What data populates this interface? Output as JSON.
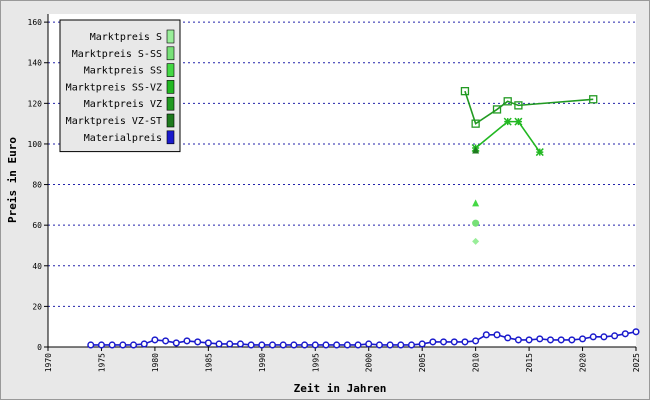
{
  "chart_data": {
    "type": "line",
    "xlabel": "Zeit in Jahren",
    "ylabel": "Preis in Euro",
    "xlim": [
      1970,
      2025
    ],
    "ylim": [
      0,
      164
    ],
    "xticks": [
      1970,
      1975,
      1980,
      1985,
      1990,
      1995,
      2000,
      2005,
      2010,
      2015,
      2020,
      2025
    ],
    "yticks": [
      0,
      20,
      40,
      60,
      80,
      100,
      120,
      140,
      160
    ],
    "grid": true,
    "legend": "upper left",
    "series": [
      {
        "name": "Marktpreis S",
        "color": "#99ee99",
        "marker": "diamond",
        "line": false,
        "x": [
          2010
        ],
        "values": [
          52
        ]
      },
      {
        "name": "Marktpreis S-SS",
        "color": "#77e077",
        "marker": "circle",
        "line": false,
        "x": [
          2010
        ],
        "values": [
          61
        ]
      },
      {
        "name": "Marktpreis SS",
        "color": "#44d844",
        "marker": "triangle",
        "line": false,
        "x": [
          2010
        ],
        "values": [
          71
        ]
      },
      {
        "name": "Marktpreis SS-VZ",
        "color": "#22b822",
        "marker": "star",
        "line": true,
        "x": [
          2010,
          2013,
          2014,
          2016
        ],
        "values": [
          98,
          111,
          111,
          96
        ]
      },
      {
        "name": "Marktpreis VZ",
        "color": "#229a22",
        "marker": "square",
        "line": true,
        "x": [
          2009,
          2010,
          2012,
          2013,
          2014,
          2021
        ],
        "values": [
          126,
          110,
          117,
          121,
          119,
          122
        ]
      },
      {
        "name": "Marktpreis VZ-ST",
        "color": "#1e7a1e",
        "marker": "triangle",
        "line": false,
        "x": [
          2010
        ],
        "values": [
          97
        ]
      },
      {
        "name": "Materialpreis",
        "color": "#1a1acc",
        "marker": "circle",
        "line": true,
        "x": [
          1974,
          1975,
          1976,
          1977,
          1978,
          1979,
          1980,
          1981,
          1982,
          1983,
          1984,
          1985,
          1986,
          1987,
          1988,
          1989,
          1990,
          1991,
          1992,
          1993,
          1994,
          1995,
          1996,
          1997,
          1998,
          1999,
          2000,
          2001,
          2002,
          2003,
          2004,
          2005,
          2006,
          2007,
          2008,
          2009,
          2010,
          2011,
          2012,
          2013,
          2014,
          2015,
          2016,
          2017,
          2018,
          2019,
          2020,
          2021,
          2022,
          2023,
          2024,
          2025
        ],
        "values": [
          1,
          1,
          1,
          1,
          1,
          1.5,
          3.5,
          3,
          2,
          3,
          2.5,
          2,
          1.5,
          1.5,
          1.5,
          1,
          1,
          1,
          1,
          1,
          1,
          1,
          1,
          1,
          1,
          1,
          1.5,
          1,
          1,
          1,
          1,
          1.5,
          2.5,
          2.5,
          2.5,
          2.5,
          3,
          6,
          6,
          4.5,
          3.5,
          3.5,
          4,
          3.5,
          3.5,
          3.5,
          4,
          5,
          5,
          5.5,
          6.5,
          7.5
        ]
      }
    ]
  }
}
